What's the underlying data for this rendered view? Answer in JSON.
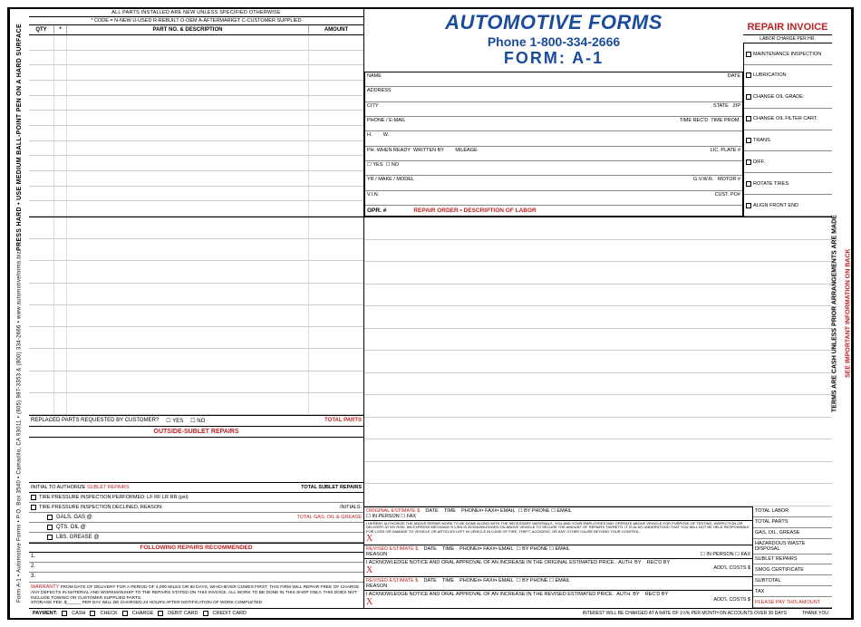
{
  "header": {
    "title": "AUTOMOTIVE FORMS",
    "phone": "Phone 1-800-334-2666",
    "form": "FORM:  A-1",
    "repair_invoice": "REPAIR INVOICE"
  },
  "sidebar_left": {
    "instr": "PRESS HARD • USE MEDIUM BALL-POINT PEN ON A HARD SURFACE",
    "meta": "Form A-1 • Automotive Forms • P.O. Box 3540 • Camarillo, CA 93011 • (805) 987-3353 & (800) 334-2666 • www.automotiveforms.biz"
  },
  "sidebar_right": {
    "terms": "TERMS ARE CASH UNLESS PRIOR ARRANGEMENTS ARE MADE",
    "back": "SEE IMPORTANT INFORMATION ON BACK"
  },
  "parts": {
    "code_hd": "ALL PARTS INSTALLED ARE NEW UNLESS SPECIFIED OTHERWISE",
    "codes": "* CODE = N-NEW  U-USED  R-REBUILT  O-OEM  A-AFTERMARKET  C-CUSTOMER SUPPLIED",
    "cols": {
      "qty": "QTY",
      "star": "*",
      "desc": "PART NO. & DESCRIPTION",
      "amt": "AMOUNT"
    },
    "replaced": "REPLACED PARTS REQUESTED BY CUSTOMER?",
    "yes": "YES",
    "no": "NO",
    "total": "TOTAL PARTS"
  },
  "cust": {
    "name": "NAME",
    "date": "DATE",
    "address": "ADDRESS",
    "city": "CITY",
    "state": "STATE",
    "zip": "ZIP",
    "phone": "PHONE / E-MAIL",
    "timerec": "TIME REC'D",
    "timeprom": "TIME PROM.",
    "h": "H.",
    "w": "W.",
    "ph_ready": "PH. WHEN READY",
    "written": "WRITTEN BY",
    "mileage": "MILEAGE",
    "plate": "LIC. PLATE #",
    "yes": "☐ YES",
    "no": "☐ NO",
    "yrmake": "YR / MAKE / MODEL",
    "gvwr": "G.V.W.R.",
    "motor": "MOTOR #",
    "vin": "V.I.N.",
    "custpo": "CUST. PO#",
    "opr": "OPR. #",
    "repair_order": "REPAIR ORDER • DESCRIPTION OF LABOR"
  },
  "labor_hd": "LABOR CHARGE PER HR.",
  "checks": [
    "MAINTENANCE INSPECTION",
    "LUBRICATION",
    "CHANGE OIL GRADE:",
    "CHANGE OIL FILTER CART.",
    "TRANS.",
    "DIFF.",
    "ROTATE TIRES",
    "ALIGN FRONT END"
  ],
  "sublet": {
    "hd": "OUTSIDE-SUBLET REPAIRS",
    "auth": "INITIAL TO AUTHORIZE",
    "auth2": "SUBLET REPAIRS",
    "total": "TOTAL SUBLET REPAIRS",
    "tire1": "TIRE PRESSURE INSPECTION PERFORMED:  LF        RF        LR        RR              (psi)",
    "tire2": "TIRE PRESSURE INSPECTION DECLINED, REASON:",
    "initials": "INITIALS:",
    "gas": "GALS. GAS @",
    "oil": "QTS. OIL @",
    "grease": "LBS. GREASE @",
    "total_gog": "TOTAL GAS, OIL & GREASE",
    "following": "FOLLOWING REPAIRS RECOMMENDED"
  },
  "recs": [
    "1.",
    "2.",
    "3."
  ],
  "warranty": {
    "lbl": "WARRANTY",
    "text": "FROM DATE OF DELIVERY FOR A PERIOD OF 4,000 MILES OR 90 DAYS, WHICHEVER COMES FIRST, THIS FIRM WILL REPAIR FREE OF CHARGE ANY DEFECTS IN MATERIAL AND WORKMANSHIP TO THE REPAIRS STATED ON THIS INVOICE. ALL WORK TO BE DONE IN THIS SHOP ONLY. THIS DOES NOT INCLUDE TOWING OR CUSTOMER SUPPLIED PARTS.",
    "storage": "STORAGE FEE: $______ PER DAY WILL BE CHARGED 24 HOURS AFTER NOTIFICATION OF WORK COMPLETED"
  },
  "est": {
    "orig": "ORIGINAL ESTIMATE $",
    "date": "DATE",
    "time": "TIME",
    "contact": "PHONE#• FAX#• EMAIL",
    "byphone": "☐ BY PHONE",
    "inperson": "☐ IN PERSON",
    "email": "☐ EMAIL",
    "fax": "☐ FAX",
    "hereby": "I HEREBY AUTHORIZE THE ABOVE REPAIR WORK TO BE DONE ALONG WITH THE NECESSARY MATERIALS. YOU AND YOUR EMPLOYEES MAY OPERATE ABOVE VEHICLE FOR PURPOSE OF TESTING, INSPECTION OR DELIVERY AT MY RISK. AN EXPRESS MECHANIC'S LIEN IS ACKNOWLEDGED ON ABOVE VEHICLE TO SECURE THE AMOUNT OF REPAIRS THERETO. IT IS ALSO UNDERSTOOD THAT YOU WILL NOT BE HELD RESPONSIBLE FOR LOSS OR DAMAGE TO VEHICLE OR ARTICLES LEFT IN VEHICLE IN CASE OF FIRE, THEFT, ACCIDENT, OR ANY OTHER CAUSE BEYOND YOUR CONTROL.",
    "sig": "X",
    "revised": "REVISED ESTIMATE $",
    "reason": "REASON",
    "ack": "I ACKNOWLEDGE NOTICE AND ORAL APPROVAL OF AN INCREASE IN THE ORIGINAL ESTIMATED PRICE.",
    "authby": "AUTH. BY",
    "recd": "REC'D BY",
    "addl": "ADD'L COSTS $",
    "ack2": "I ACKNOWLEDGE NOTICE AND ORAL APPROVAL OF AN INCREASE IN THE REVISED ESTIMATED PRICE."
  },
  "totals": [
    "TOTAL LABOR",
    "TOTAL PARTS",
    "GAS, OIL, GREASE",
    "HAZARDOUS WASTE DISPOSAL",
    "SUBLET REPAIRS",
    "SMOG CERTIFICATE",
    "SUBTOTAL",
    "TAX",
    "PLEASE PAY THIS AMOUNT"
  ],
  "footer": {
    "payment": "PAYMENT:",
    "cash": "CASH",
    "check": "CHECK",
    "charge": "CHARGE",
    "debit": "DEBIT CARD",
    "credit": "CREDIT CARD",
    "interest": "INTEREST WILL BE CHARGED AT A RATE OF 1½% PER MONTH ON ACCOUNTS OVER 30 DAYS",
    "thank": "THANK YOU"
  }
}
